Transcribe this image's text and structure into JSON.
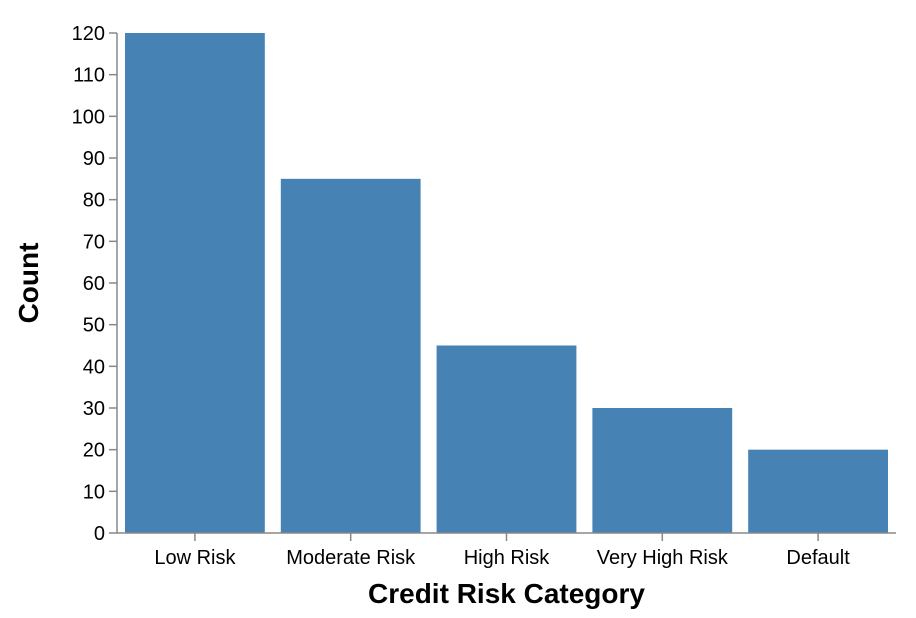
{
  "chart_data": {
    "type": "bar",
    "categories": [
      "Low Risk",
      "Moderate Risk",
      "High Risk",
      "Very High Risk",
      "Default"
    ],
    "values": [
      120,
      85,
      45,
      30,
      20
    ],
    "xlabel": "Credit Risk Category",
    "ylabel": "Count",
    "ylim": [
      0,
      120
    ],
    "yticks": [
      0,
      10,
      20,
      30,
      40,
      50,
      60,
      70,
      80,
      90,
      100,
      110,
      120
    ],
    "bar_color": "#4682b4",
    "grid": false
  }
}
